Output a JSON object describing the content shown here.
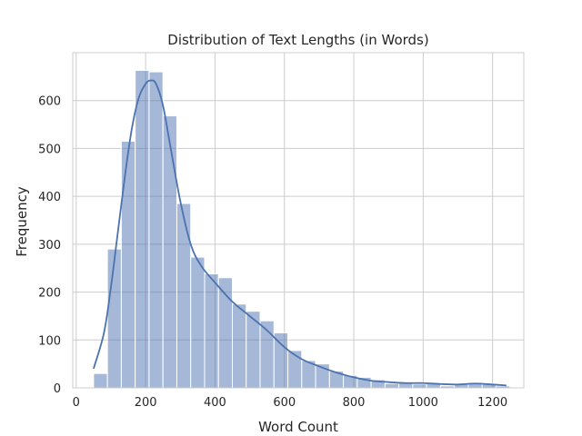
{
  "chart_data": {
    "type": "histogram",
    "title": "Distribution of Text Lengths (in Words)",
    "xlabel": "Word Count",
    "ylabel": "Frequency",
    "xlim": [
      -10,
      1290
    ],
    "ylim": [
      0,
      700
    ],
    "xticks": [
      "0",
      "200",
      "400",
      "600",
      "800",
      "1000",
      "1200"
    ],
    "yticks": [
      "0",
      "100",
      "200",
      "300",
      "400",
      "500",
      "600"
    ],
    "grid": true,
    "bar_color": "#4c72b0",
    "bar_opacity": 0.5,
    "kde_color": "#4c72b0",
    "bins": [
      {
        "start": 50,
        "end": 90,
        "count": 30
      },
      {
        "start": 90,
        "end": 130,
        "count": 290
      },
      {
        "start": 130,
        "end": 170,
        "count": 515
      },
      {
        "start": 170,
        "end": 210,
        "count": 663
      },
      {
        "start": 210,
        "end": 250,
        "count": 660
      },
      {
        "start": 250,
        "end": 290,
        "count": 568
      },
      {
        "start": 290,
        "end": 330,
        "count": 385
      },
      {
        "start": 330,
        "end": 370,
        "count": 273
      },
      {
        "start": 370,
        "end": 410,
        "count": 238
      },
      {
        "start": 410,
        "end": 450,
        "count": 230
      },
      {
        "start": 450,
        "end": 490,
        "count": 175
      },
      {
        "start": 490,
        "end": 530,
        "count": 160
      },
      {
        "start": 530,
        "end": 570,
        "count": 140
      },
      {
        "start": 570,
        "end": 610,
        "count": 115
      },
      {
        "start": 610,
        "end": 650,
        "count": 78
      },
      {
        "start": 650,
        "end": 690,
        "count": 57
      },
      {
        "start": 690,
        "end": 730,
        "count": 50
      },
      {
        "start": 730,
        "end": 770,
        "count": 35
      },
      {
        "start": 770,
        "end": 810,
        "count": 26
      },
      {
        "start": 810,
        "end": 850,
        "count": 22
      },
      {
        "start": 850,
        "end": 890,
        "count": 17
      },
      {
        "start": 890,
        "end": 930,
        "count": 9
      },
      {
        "start": 930,
        "end": 970,
        "count": 10
      },
      {
        "start": 970,
        "end": 1010,
        "count": 8
      },
      {
        "start": 1010,
        "end": 1050,
        "count": 10
      },
      {
        "start": 1050,
        "end": 1090,
        "count": 4
      },
      {
        "start": 1090,
        "end": 1130,
        "count": 8
      },
      {
        "start": 1130,
        "end": 1170,
        "count": 10
      },
      {
        "start": 1170,
        "end": 1210,
        "count": 8
      },
      {
        "start": 1210,
        "end": 1250,
        "count": 4
      }
    ],
    "kde": {
      "x": [
        50,
        80,
        100,
        120,
        140,
        160,
        180,
        200,
        215,
        230,
        250,
        270,
        300,
        330,
        360,
        400,
        450,
        500,
        550,
        600,
        650,
        700,
        750,
        800,
        850,
        900,
        950,
        1000,
        1050,
        1100,
        1150,
        1200,
        1240
      ],
      "y": [
        40,
        115,
        210,
        325,
        440,
        540,
        605,
        635,
        642,
        635,
        590,
        510,
        390,
        300,
        255,
        220,
        180,
        150,
        120,
        85,
        60,
        45,
        32,
        22,
        15,
        12,
        10,
        10,
        8,
        7,
        9,
        7,
        5
      ]
    }
  }
}
